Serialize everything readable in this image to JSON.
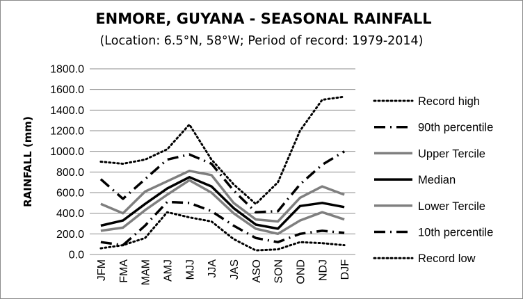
{
  "chart_data": {
    "type": "line",
    "title": "ENMORE, GUYANA - SEASONAL RAINFALL",
    "subtitle": "(Location: 6.5°N, 58°W; Period of record: 1979-2014)",
    "xlabel": "",
    "ylabel": "RAINFALL (mm)",
    "ylim": [
      0,
      1800
    ],
    "yticks": [
      "0.0",
      "200.0",
      "400.0",
      "600.0",
      "800.0",
      "1000.0",
      "1200.0",
      "1400.0",
      "1600.0",
      "1800.0"
    ],
    "grid": true,
    "legend_position": "right",
    "categories": [
      "JFM",
      "FMA",
      "MAM",
      "AMJ",
      "MJJ",
      "JJA",
      "JAS",
      "ASO",
      "SON",
      "OND",
      "NDJ",
      "DJF"
    ],
    "series": [
      {
        "name": "Record high",
        "style": "dotted",
        "color": "#000000",
        "values": [
          900,
          880,
          920,
          1020,
          1260,
          920,
          680,
          490,
          700,
          1200,
          1500,
          1530
        ]
      },
      {
        "name": "90th percentile",
        "style": "dash-dot",
        "color": "#000000",
        "values": [
          730,
          540,
          730,
          920,
          970,
          880,
          620,
          410,
          420,
          680,
          870,
          1000
        ]
      },
      {
        "name": "Upper Tercile",
        "style": "solid",
        "color": "#7f7f7f",
        "values": [
          490,
          400,
          610,
          710,
          810,
          770,
          500,
          340,
          320,
          550,
          660,
          580
        ]
      },
      {
        "name": "Median",
        "style": "solid",
        "color": "#000000",
        "values": [
          280,
          330,
          490,
          640,
          750,
          660,
          450,
          290,
          250,
          470,
          500,
          460
        ]
      },
      {
        "name": "Lower Tercile",
        "style": "solid",
        "color": "#7f7f7f",
        "values": [
          230,
          260,
          430,
          580,
          720,
          600,
          400,
          250,
          200,
          330,
          410,
          340
        ]
      },
      {
        "name": "10th percentile",
        "style": "dash-dot",
        "color": "#000000",
        "values": [
          120,
          90,
          280,
          510,
          500,
          420,
          280,
          160,
          120,
          200,
          230,
          210
        ]
      },
      {
        "name": "Record low",
        "style": "dotted",
        "color": "#000000",
        "values": [
          60,
          90,
          160,
          410,
          360,
          320,
          150,
          40,
          50,
          120,
          110,
          90
        ]
      }
    ]
  }
}
